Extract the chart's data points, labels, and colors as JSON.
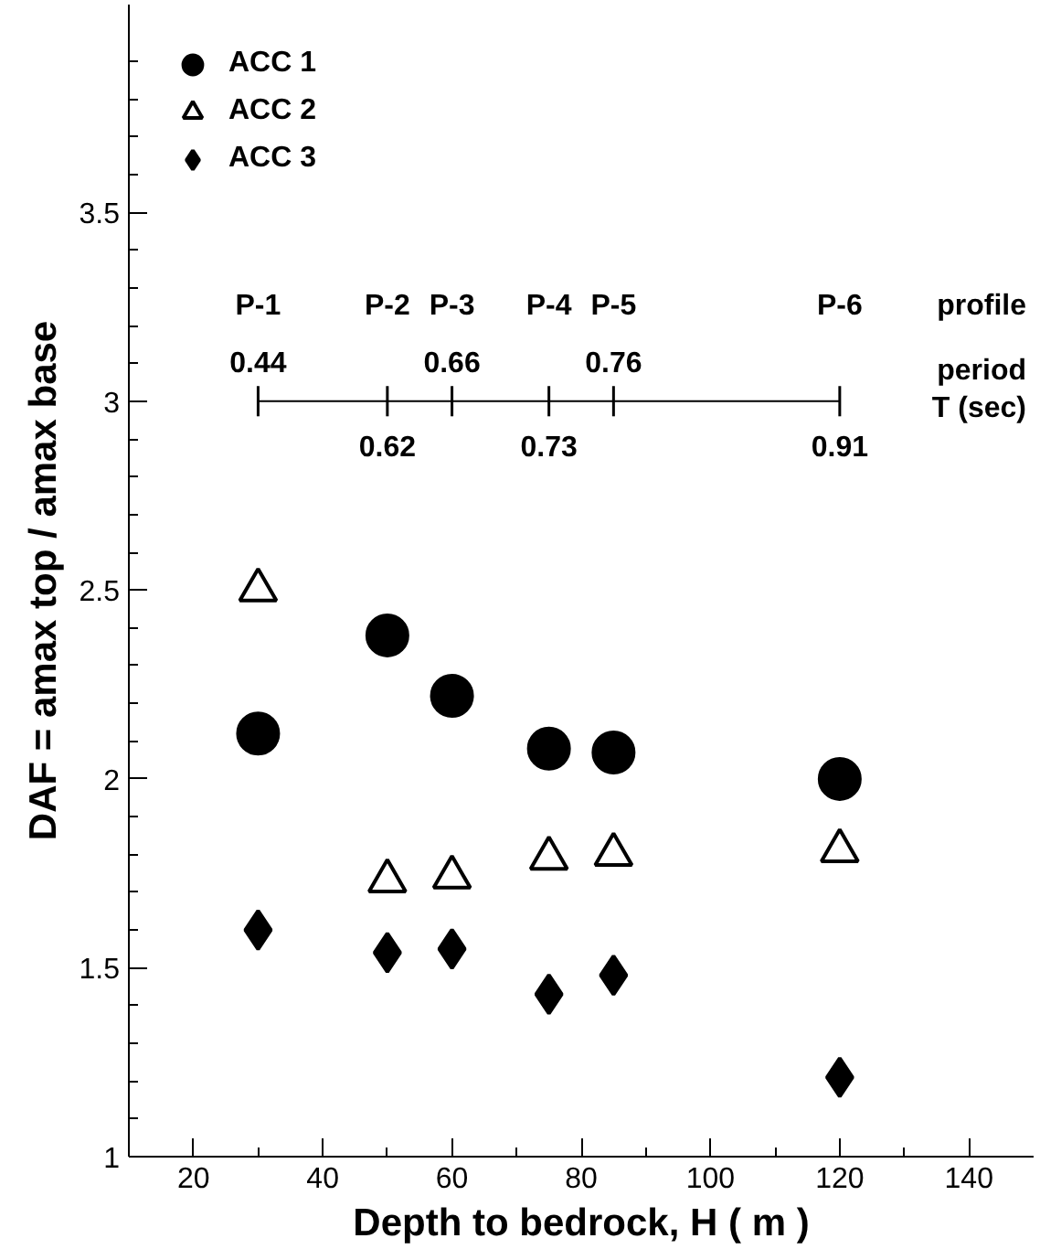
{
  "chart_data": {
    "type": "scatter",
    "xlabel": "Depth to bedrock, H ( m )",
    "ylabel": "DAF = amax top / amax base",
    "xlim": [
      10,
      150
    ],
    "xticks": [
      20,
      40,
      60,
      80,
      100,
      120,
      140
    ],
    "ylim": [
      1,
      4.05
    ],
    "yticks": [
      1,
      1.5,
      2,
      2.5,
      3,
      3.5
    ],
    "grid": false,
    "legend": "top left",
    "x": [
      30,
      50,
      60,
      75,
      85,
      120
    ],
    "series": [
      {
        "name": "ACC 1",
        "color": "#000000",
        "marker": "circle",
        "values": [
          2.12,
          2.38,
          2.22,
          2.08,
          2.07,
          2.0
        ]
      },
      {
        "name": "ACC 2",
        "color": "#000000",
        "marker": "triangle_open",
        "values": [
          2.5,
          1.73,
          1.74,
          1.79,
          1.8,
          1.81
        ]
      },
      {
        "name": "ACC 3",
        "color": "#000000",
        "marker": "diamond",
        "values": [
          1.6,
          1.54,
          1.55,
          1.43,
          1.48,
          1.21
        ]
      },
      {
        "type": "line",
        "color": "#000000",
        "marker": "none",
        "values": [
          3,
          3,
          3,
          3,
          3,
          3
        ],
        "errors": [
          0.04,
          0.04,
          0.04,
          0.04,
          0.04,
          0.04
        ]
      }
    ],
    "annotations": [
      {
        "text": "P-1",
        "x": 30,
        "y": 3
      },
      {
        "text": "P-2",
        "x": 50,
        "y": 3
      },
      {
        "text": "P-3",
        "x": 60,
        "y": 3
      },
      {
        "text": "P-4",
        "x": 75,
        "y": 3
      },
      {
        "text": "P-5",
        "x": 85,
        "y": 3
      },
      {
        "text": "P-6",
        "x": 120,
        "y": 3
      },
      {
        "text": "0.44",
        "x": 30,
        "y": 3
      },
      {
        "text": "0.62",
        "x": 50,
        "y": 3
      },
      {
        "text": "0.66",
        "x": 60,
        "y": 3
      },
      {
        "text": "0.73",
        "x": 75,
        "y": 3
      },
      {
        "text": "0.76",
        "x": 85,
        "y": 3
      },
      {
        "text": "0.91",
        "x": 120,
        "y": 3
      },
      "profile",
      "period\nT (sec)"
    ]
  }
}
